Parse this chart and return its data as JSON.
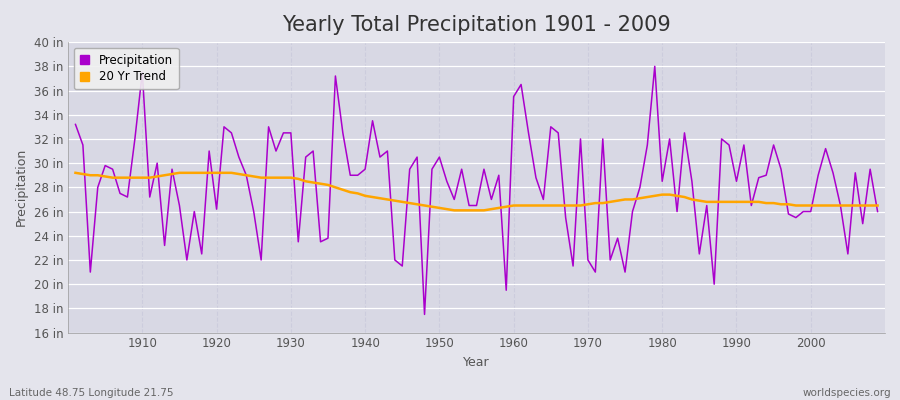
{
  "title": "Yearly Total Precipitation 1901 - 2009",
  "xlabel": "Year",
  "ylabel": "Precipitation",
  "years": [
    1901,
    1902,
    1903,
    1904,
    1905,
    1906,
    1907,
    1908,
    1909,
    1910,
    1911,
    1912,
    1913,
    1914,
    1915,
    1916,
    1917,
    1918,
    1919,
    1920,
    1921,
    1922,
    1923,
    1924,
    1925,
    1926,
    1927,
    1928,
    1929,
    1930,
    1931,
    1932,
    1933,
    1934,
    1935,
    1936,
    1937,
    1938,
    1939,
    1940,
    1941,
    1942,
    1943,
    1944,
    1945,
    1946,
    1947,
    1948,
    1949,
    1950,
    1951,
    1952,
    1953,
    1954,
    1955,
    1956,
    1957,
    1958,
    1959,
    1960,
    1961,
    1962,
    1963,
    1964,
    1965,
    1966,
    1967,
    1968,
    1969,
    1970,
    1971,
    1972,
    1973,
    1974,
    1975,
    1976,
    1977,
    1978,
    1979,
    1980,
    1981,
    1982,
    1983,
    1984,
    1985,
    1986,
    1987,
    1988,
    1989,
    1990,
    1991,
    1992,
    1993,
    1994,
    1995,
    1996,
    1997,
    1998,
    1999,
    2000,
    2001,
    2002,
    2003,
    2004,
    2005,
    2006,
    2007,
    2008,
    2009
  ],
  "precipitation": [
    33.2,
    31.5,
    21.0,
    28.0,
    29.8,
    29.5,
    27.5,
    27.2,
    32.0,
    37.5,
    27.2,
    30.0,
    23.2,
    29.5,
    26.5,
    22.0,
    26.0,
    22.5,
    31.0,
    26.2,
    33.0,
    32.5,
    30.5,
    29.0,
    26.0,
    22.0,
    33.0,
    31.0,
    32.5,
    32.5,
    23.5,
    30.5,
    31.0,
    23.5,
    23.8,
    37.2,
    32.5,
    29.0,
    29.0,
    29.5,
    33.5,
    30.5,
    31.0,
    22.0,
    21.5,
    29.5,
    30.5,
    17.5,
    29.5,
    30.5,
    28.5,
    27.0,
    29.5,
    26.5,
    26.5,
    29.5,
    27.0,
    29.0,
    19.5,
    35.5,
    36.5,
    32.5,
    28.8,
    27.0,
    33.0,
    32.5,
    25.5,
    21.5,
    32.0,
    22.0,
    21.0,
    32.0,
    22.0,
    23.8,
    21.0,
    26.0,
    28.0,
    31.5,
    38.0,
    28.5,
    32.0,
    26.0,
    32.5,
    28.5,
    22.5,
    26.5,
    20.0,
    32.0,
    31.5,
    28.5,
    31.5,
    26.5,
    28.8,
    29.0,
    31.5,
    29.5,
    25.8,
    25.5,
    26.0,
    26.0,
    29.0,
    31.2,
    29.2,
    26.5,
    22.5,
    29.2,
    25.0,
    29.5,
    26.0
  ],
  "trend": [
    29.2,
    29.1,
    29.0,
    29.0,
    28.9,
    28.8,
    28.8,
    28.8,
    28.8,
    28.8,
    28.8,
    28.9,
    29.0,
    29.1,
    29.2,
    29.2,
    29.2,
    29.2,
    29.2,
    29.2,
    29.2,
    29.2,
    29.1,
    29.0,
    28.9,
    28.8,
    28.8,
    28.8,
    28.8,
    28.8,
    28.7,
    28.5,
    28.4,
    28.3,
    28.2,
    28.0,
    27.8,
    27.6,
    27.5,
    27.3,
    27.2,
    27.1,
    27.0,
    26.9,
    26.8,
    26.7,
    26.6,
    26.5,
    26.4,
    26.3,
    26.2,
    26.1,
    26.1,
    26.1,
    26.1,
    26.1,
    26.2,
    26.3,
    26.4,
    26.5,
    26.5,
    26.5,
    26.5,
    26.5,
    26.5,
    26.5,
    26.5,
    26.5,
    26.5,
    26.6,
    26.7,
    26.7,
    26.8,
    26.9,
    27.0,
    27.0,
    27.1,
    27.2,
    27.3,
    27.4,
    27.4,
    27.3,
    27.2,
    27.0,
    26.9,
    26.8,
    26.8,
    26.8,
    26.8,
    26.8,
    26.8,
    26.8,
    26.8,
    26.7,
    26.7,
    26.6,
    26.6,
    26.5,
    26.5,
    26.5,
    26.5,
    26.5,
    26.5,
    26.5,
    26.5,
    26.5,
    26.5,
    26.5,
    26.5
  ],
  "precip_color": "#AA00CC",
  "trend_color": "#FFA500",
  "fig_bg_color": "#E4E4EC",
  "plot_bg_color": "#D8D8E4",
  "grid_color_h": "#FFFFFF",
  "grid_color_v": "#CCCCDD",
  "ylim": [
    16,
    40
  ],
  "yticks": [
    16,
    18,
    20,
    22,
    24,
    26,
    28,
    30,
    32,
    34,
    36,
    38,
    40
  ],
  "ytick_labels": [
    "16 in",
    "18 in",
    "20 in",
    "22 in",
    "24 in",
    "26 in",
    "28 in",
    "30 in",
    "32 in",
    "34 in",
    "36 in",
    "38 in",
    "40 in"
  ],
  "xticks": [
    1910,
    1920,
    1930,
    1940,
    1950,
    1960,
    1970,
    1980,
    1990,
    2000
  ],
  "xlim_min": 1900,
  "xlim_max": 2010,
  "title_fontsize": 15,
  "label_fontsize": 9,
  "tick_fontsize": 8.5,
  "legend_labels": [
    "Precipitation",
    "20 Yr Trend"
  ],
  "footer_left": "Latitude 48.75 Longitude 21.75",
  "footer_right": "worldspecies.org"
}
